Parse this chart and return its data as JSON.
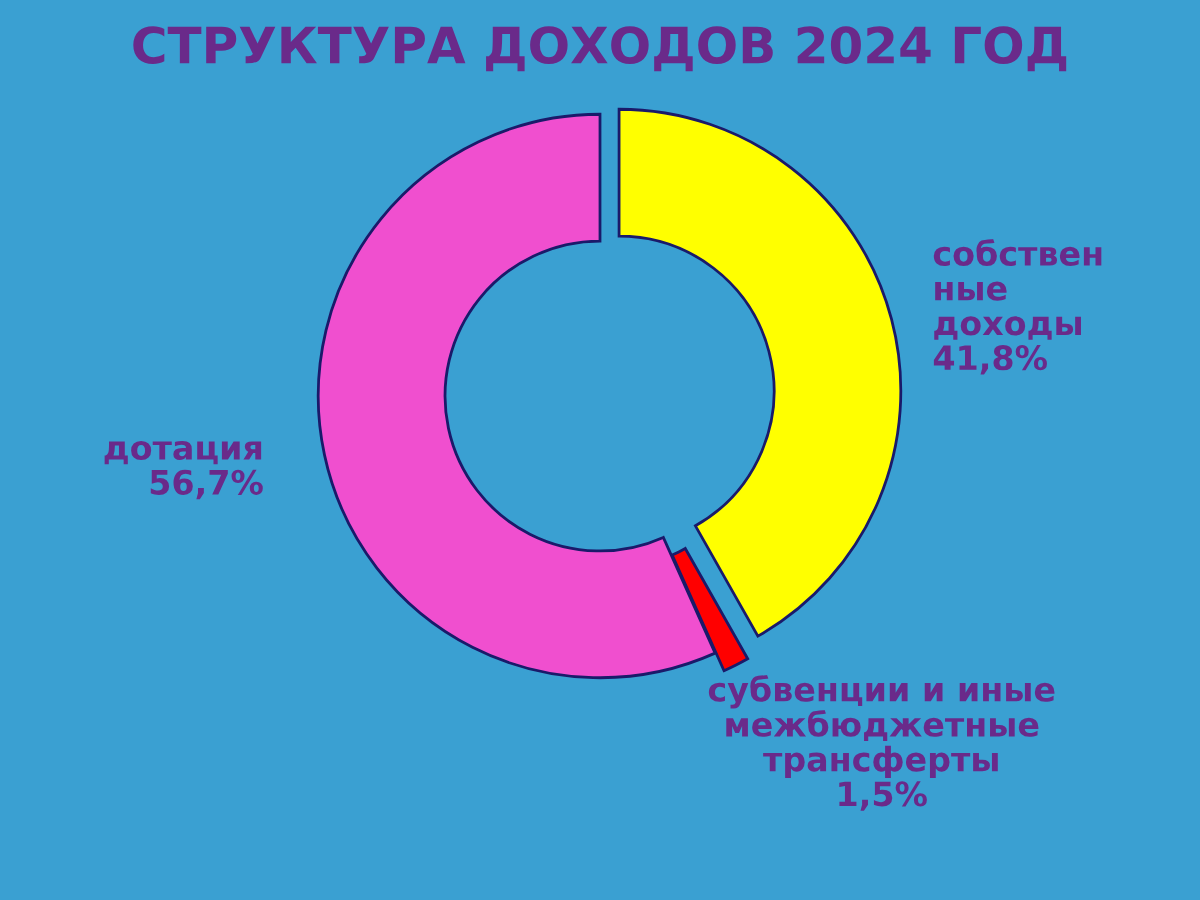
{
  "chart_data": {
    "type": "donut",
    "title": "СТРУКТУРА ДОХОДОВ 2024 ГОД",
    "categories": [
      "собствен\nные\nдоходы",
      "субвенции и иные\nмежбюджетные\nтрансферты",
      "дотация"
    ],
    "values": [
      41.8,
      1.5,
      56.7
    ],
    "value_labels": [
      "41,8%",
      "1,5%",
      "56,7%"
    ],
    "colors": [
      "#ffff00",
      "#ff0000",
      "#f04fcf"
    ],
    "legend": false
  }
}
